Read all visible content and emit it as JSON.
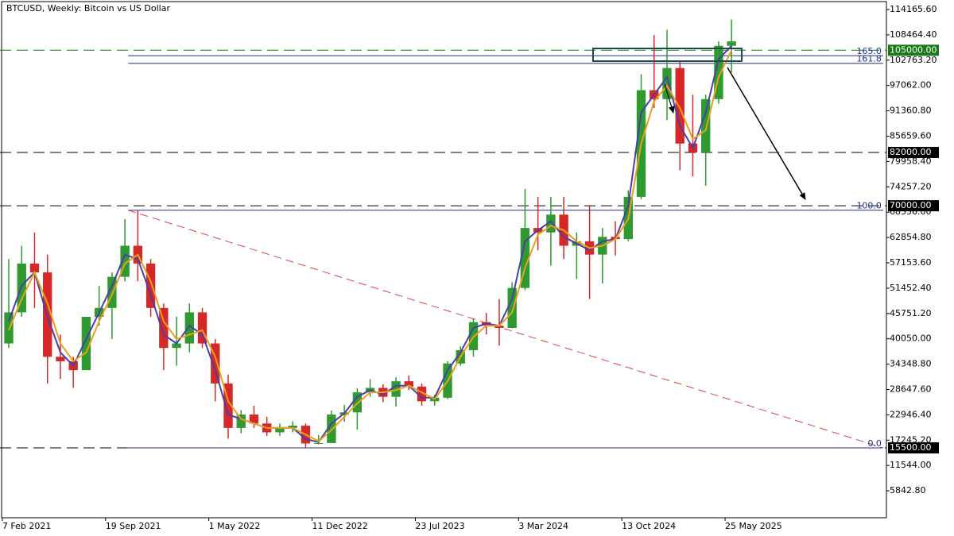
{
  "chart_data": {
    "type": "candlestick",
    "title": "BTCUSD, Weekly:  Bitcoin vs US Dollar",
    "x": [
      "2021-02-07",
      "2021-03-07",
      "2021-04-04",
      "2021-05-02",
      "2021-05-30",
      "2021-06-27",
      "2021-07-25",
      "2021-08-22",
      "2021-09-19",
      "2021-10-17",
      "2021-11-14",
      "2021-12-12",
      "2022-01-09",
      "2022-02-06",
      "2022-03-06",
      "2022-04-03",
      "2022-05-01",
      "2022-05-29",
      "2022-06-26",
      "2022-07-24",
      "2022-08-21",
      "2022-09-18",
      "2022-10-16",
      "2022-11-13",
      "2022-12-11",
      "2023-01-08",
      "2023-02-05",
      "2023-03-05",
      "2023-04-02",
      "2023-04-30",
      "2023-05-28",
      "2023-06-25",
      "2023-07-23",
      "2023-08-20",
      "2023-09-17",
      "2023-10-15",
      "2023-11-12",
      "2023-12-10",
      "2024-01-07",
      "2024-02-04",
      "2024-03-03",
      "2024-03-31",
      "2024-04-28",
      "2024-05-26",
      "2024-06-23",
      "2024-07-21",
      "2024-08-18",
      "2024-09-15",
      "2024-10-13",
      "2024-11-10",
      "2024-12-08",
      "2025-01-05",
      "2025-02-02",
      "2025-03-02",
      "2025-03-30",
      "2025-04-27",
      "2025-05-25"
    ],
    "open": [
      39000,
      46000,
      57000,
      55000,
      36000,
      35000,
      33000,
      45000,
      47000,
      54000,
      61000,
      57000,
      47000,
      38000,
      39000,
      46000,
      39000,
      30000,
      20000,
      23000,
      21000,
      19000,
      20000,
      20500,
      16500,
      16600,
      23000,
      23500,
      28000,
      29000,
      27000,
      30500,
      29300,
      26000,
      26800,
      34500,
      37500,
      43800,
      43000,
      42500,
      51500,
      65000,
      64000,
      68000,
      61000,
      62000,
      59000,
      63000,
      62500,
      72000,
      96000,
      94000,
      101000,
      84000,
      82000,
      94000,
      106000
    ],
    "high": [
      58000,
      61000,
      64000,
      59000,
      41000,
      36000,
      45000,
      52000,
      55000,
      67000,
      69000,
      58000,
      48000,
      45000,
      48000,
      47000,
      40000,
      32000,
      24000,
      25000,
      22500,
      21000,
      21500,
      21000,
      18400,
      23900,
      25200,
      28900,
      31000,
      29800,
      31400,
      31800,
      30000,
      27500,
      35000,
      38400,
      44700,
      45900,
      49000,
      52800,
      73800,
      72000,
      72000,
      72000,
      64000,
      70000,
      65000,
      66500,
      73500,
      99600,
      108400,
      109600,
      102500,
      95000,
      95000,
      107000,
      111900
    ],
    "low": [
      38000,
      45000,
      47000,
      30000,
      31000,
      29000,
      33000,
      43000,
      40000,
      53000,
      53000,
      45000,
      33000,
      34000,
      37000,
      38000,
      26000,
      17600,
      18800,
      20000,
      18200,
      18200,
      19000,
      15500,
      16300,
      16600,
      21400,
      19600,
      27000,
      25800,
      24800,
      28500,
      25000,
      25000,
      26500,
      34000,
      36000,
      41000,
      38500,
      42400,
      51000,
      60000,
      56500,
      58000,
      53500,
      49000,
      52500,
      58800,
      62000,
      71500,
      92000,
      89300,
      78000,
      76600,
      74500,
      93000,
      100000
    ],
    "close": [
      46000,
      57000,
      55000,
      36000,
      35000,
      33000,
      45000,
      47000,
      54000,
      61000,
      57000,
      47000,
      38000,
      39000,
      46000,
      39000,
      30000,
      20000,
      23000,
      21000,
      19000,
      20000,
      20500,
      16500,
      16600,
      23000,
      23500,
      28000,
      29000,
      27000,
      30500,
      29300,
      26000,
      26800,
      34500,
      37500,
      43800,
      43000,
      42500,
      51500,
      65000,
      64000,
      68000,
      61000,
      62000,
      59000,
      63000,
      62500,
      72000,
      96000,
      94000,
      101000,
      84000,
      82000,
      94000,
      106000,
      107000
    ],
    "up_color": "#2f9a2f",
    "down_color": "#d62828",
    "lines": [
      {
        "color": "#4b3fa6",
        "values": [
          44000,
          52000,
          55000,
          45000,
          37000,
          34000,
          40000,
          46000,
          52000,
          59000,
          58000,
          50000,
          41000,
          39000,
          43000,
          41000,
          33000,
          23000,
          22000,
          21000,
          20000,
          20000,
          20000,
          17500,
          16800,
          21000,
          23300,
          27000,
          28500,
          27500,
          29500,
          29500,
          26800,
          26800,
          33000,
          37000,
          42500,
          43500,
          43000,
          49000,
          62000,
          64500,
          66500,
          63000,
          61500,
          60000,
          62000,
          62500,
          70000,
          91000,
          95000,
          99000,
          88000,
          83000,
          91000,
          103000,
          106000
        ]
      },
      {
        "color": "#e8a020",
        "values": [
          42000,
          49000,
          55000,
          48000,
          39000,
          35000,
          37000,
          44000,
          50000,
          57000,
          59000,
          53000,
          44000,
          40000,
          41000,
          42000,
          36000,
          26000,
          22000,
          21000,
          20000,
          20000,
          20000,
          18500,
          17000,
          19500,
          22500,
          25500,
          28000,
          28000,
          28500,
          29500,
          28000,
          26500,
          30500,
          36000,
          40500,
          43000,
          43000,
          46000,
          56000,
          63500,
          65500,
          64500,
          62000,
          60500,
          61000,
          62500,
          67000,
          84000,
          93500,
          97000,
          92000,
          85000,
          87000,
          99000,
          105000
        ]
      }
    ],
    "levels": [
      {
        "value": 105000,
        "label": "105000.00",
        "color": "#1a7a1a"
      },
      {
        "value": 82000,
        "label": "82000.00",
        "color": "#000000"
      },
      {
        "value": 70000,
        "label": "70000.00",
        "color": "#000000"
      },
      {
        "value": 15500,
        "label": "15500.00",
        "color": "#000000"
      }
    ],
    "fib": {
      "start": "2021-11-07",
      "end": "2026-05-03",
      "color": "#1f2f8f",
      "levels": [
        {
          "value": 103775,
          "label": "165.0"
        },
        {
          "value": 102063,
          "label": "161.8"
        },
        {
          "value": 69000,
          "label": "100.0"
        },
        {
          "value": 15500,
          "label": "0.0"
        }
      ]
    },
    "trendline": {
      "x": [
        "2021-11-07",
        "2026-05-03"
      ],
      "values": [
        69000,
        15500
      ],
      "color": "#e0403a"
    },
    "xlim": [
      "2021-02-02",
      "2026-05-10"
    ],
    "xticks": [
      {
        "value": "2021-02-07",
        "label": "7 Feb 2021"
      },
      {
        "value": "2021-09-19",
        "label": "19 Sep 2021"
      },
      {
        "value": "2022-05-01",
        "label": "1 May 2022"
      },
      {
        "value": "2022-12-11",
        "label": "11 Dec 2022"
      },
      {
        "value": "2023-07-23",
        "label": "23 Jul 2023"
      },
      {
        "value": "2024-03-03",
        "label": "3 Mar 2024"
      },
      {
        "value": "2024-10-13",
        "label": "13 Oct 2024"
      },
      {
        "value": "2025-05-25",
        "label": "25 May 2025"
      }
    ],
    "ylim": [
      -218,
      116310
    ],
    "yticks": [
      {
        "value": 114165.6,
        "label": "114165.60"
      },
      {
        "value": 108464.4,
        "label": "108464.40"
      },
      {
        "value": 102763.2,
        "label": "102763.20"
      },
      {
        "value": 97062,
        "label": "97062.00"
      },
      {
        "value": 91360.8,
        "label": "91360.80"
      },
      {
        "value": 85659.6,
        "label": "85659.60"
      },
      {
        "value": 79958.4,
        "label": "79958.40"
      },
      {
        "value": 74257.2,
        "label": "74257.20"
      },
      {
        "value": 68556,
        "label": "68556.00"
      },
      {
        "value": 62854.8,
        "label": "62854.80"
      },
      {
        "value": 57153.6,
        "label": "57153.60"
      },
      {
        "value": 51452.4,
        "label": "51452.40"
      },
      {
        "value": 45751.2,
        "label": "45751.20"
      },
      {
        "value": 40050,
        "label": "40050.00"
      },
      {
        "value": 34348.8,
        "label": "34348.80"
      },
      {
        "value": 28647.6,
        "label": "28647.60"
      },
      {
        "value": 22946.4,
        "label": "22946.40"
      },
      {
        "value": 17245.2,
        "label": "17245.20"
      },
      {
        "value": 11544,
        "label": "11544.00"
      },
      {
        "value": 5842.8,
        "label": "5842.80"
      }
    ]
  }
}
